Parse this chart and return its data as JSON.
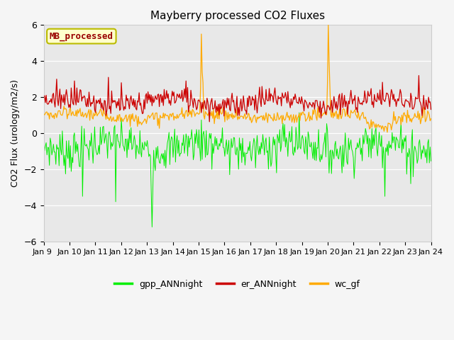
{
  "title": "Mayberry processed CO2 Fluxes",
  "ylabel": "CO2 Flux (urology/m2/s)",
  "ylim": [
    -6,
    6
  ],
  "yticks": [
    -6,
    -4,
    -2,
    0,
    2,
    4,
    6
  ],
  "xtick_labels": [
    "Jan 9 ",
    "Jan 10",
    "Jan 11",
    "Jan 12",
    "Jan 13",
    "Jan 14",
    "Jan 15",
    "Jan 16",
    "Jan 17",
    "Jan 18",
    "Jan 19",
    "Jan 20",
    "Jan 21",
    "Jan 22",
    "Jan 23",
    "Jan 24"
  ],
  "colors": {
    "gpp": "#00ee00",
    "er": "#cc0000",
    "wc": "#ffaa00",
    "plot_bg": "#e8e8e8",
    "fig_bg": "#f5f5f5",
    "grid": "#ffffff"
  },
  "legend_label": "MB_processed",
  "legend_bg": "#ffffcc",
  "legend_edge": "#bbbb00",
  "series_labels": [
    "gpp_ANNnight",
    "er_ANNnight",
    "wc_gf"
  ],
  "n_points": 480,
  "seed": 7
}
